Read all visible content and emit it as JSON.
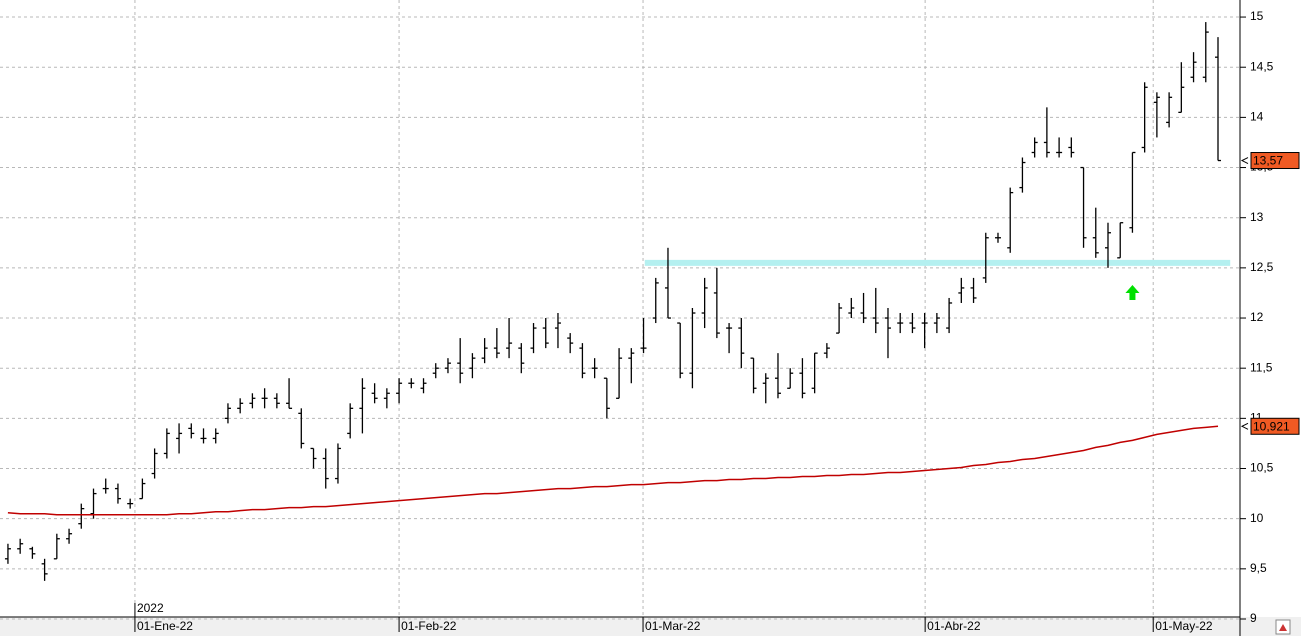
{
  "chart_data": {
    "type": "ohlc",
    "xlim": [
      -0.65,
      100.8
    ],
    "ylim": [
      9,
      15.17
    ],
    "yticks": [
      {
        "value": 9,
        "label": "9"
      },
      {
        "value": 9.5,
        "label": "9,5"
      },
      10,
      {
        "value": 10.5,
        "label": "10,5"
      },
      11,
      {
        "value": 11.5,
        "label": "11,5"
      },
      12,
      {
        "value": 12.5,
        "label": "12,5"
      },
      13,
      {
        "value": 13.5,
        "label": "13,5"
      },
      14,
      {
        "value": 14.5,
        "label": "14,5"
      },
      15
    ],
    "xticks": [
      {
        "value": 10.39,
        "label": "01-Ene-22"
      },
      {
        "value": 32.0,
        "label": "01-Feb-22"
      },
      {
        "value": 51.96,
        "label": "01-Mar-22"
      },
      {
        "value": 75.04,
        "label": "01-Abr-22"
      },
      {
        "value": 93.7,
        "label": "01-May-22"
      }
    ],
    "year_label": "2022",
    "grid": true,
    "series": [
      {
        "type": "ohlc",
        "color": "#000000",
        "last_label": {
          "value": 13.57,
          "label": "13,57"
        },
        "label_color": "#f05a23",
        "values": [
          [
            9.6,
            9.75,
            9.55,
            9.7
          ],
          [
            9.7,
            9.8,
            9.65,
            9.75
          ],
          [
            9.7,
            9.72,
            9.6,
            9.65
          ],
          [
            9.55,
            9.6,
            9.38,
            9.45
          ],
          [
            9.6,
            9.85,
            9.6,
            9.8
          ],
          [
            9.8,
            9.9,
            9.75,
            9.85
          ],
          [
            9.95,
            10.15,
            9.9,
            10.1
          ],
          [
            10.05,
            10.3,
            10.0,
            10.25
          ],
          [
            10.3,
            10.4,
            10.25,
            10.3
          ],
          [
            10.3,
            10.35,
            10.15,
            10.2
          ],
          [
            10.15,
            10.2,
            10.1,
            10.15
          ],
          [
            10.2,
            10.4,
            10.2,
            10.35
          ],
          [
            10.45,
            10.7,
            10.4,
            10.65
          ],
          [
            10.65,
            10.9,
            10.6,
            10.85
          ],
          [
            10.8,
            10.95,
            10.65,
            10.85
          ],
          [
            10.9,
            10.95,
            10.8,
            10.85
          ],
          [
            10.8,
            10.9,
            10.75,
            10.8
          ],
          [
            10.8,
            10.9,
            10.75,
            10.85
          ],
          [
            11.0,
            11.15,
            10.95,
            11.1
          ],
          [
            11.1,
            11.2,
            11.05,
            11.15
          ],
          [
            11.15,
            11.25,
            11.1,
            11.2
          ],
          [
            11.2,
            11.3,
            11.1,
            11.2
          ],
          [
            11.2,
            11.25,
            11.1,
            11.15
          ],
          [
            11.15,
            11.4,
            11.1,
            11.1
          ],
          [
            11.05,
            11.1,
            10.7,
            10.75
          ],
          [
            10.7,
            10.7,
            10.5,
            10.6
          ],
          [
            10.6,
            10.7,
            10.3,
            10.4
          ],
          [
            10.4,
            10.75,
            10.35,
            10.7
          ],
          [
            10.85,
            11.15,
            10.8,
            11.1
          ],
          [
            11.1,
            11.4,
            10.85,
            11.3
          ],
          [
            11.25,
            11.35,
            11.15,
            11.2
          ],
          [
            11.2,
            11.3,
            11.1,
            11.25
          ],
          [
            11.25,
            11.4,
            11.15,
            11.35
          ],
          [
            11.35,
            11.4,
            11.3,
            11.35
          ],
          [
            11.3,
            11.4,
            11.25,
            11.35
          ],
          [
            11.45,
            11.55,
            11.4,
            11.5
          ],
          [
            11.5,
            11.6,
            11.45,
            11.55
          ],
          [
            11.55,
            11.8,
            11.35,
            11.45
          ],
          [
            11.5,
            11.65,
            11.4,
            11.6
          ],
          [
            11.6,
            11.8,
            11.55,
            11.7
          ],
          [
            11.7,
            11.9,
            11.6,
            11.65
          ],
          [
            11.7,
            12.0,
            11.6,
            11.75
          ],
          [
            11.7,
            11.75,
            11.45,
            11.55
          ],
          [
            11.7,
            11.95,
            11.65,
            11.9
          ],
          [
            11.9,
            12.0,
            11.7,
            11.75
          ],
          [
            11.9,
            12.05,
            11.7,
            11.95
          ],
          [
            11.8,
            11.85,
            11.65,
            11.75
          ],
          [
            11.7,
            11.75,
            11.4,
            11.45
          ],
          [
            11.5,
            11.6,
            11.4,
            11.5
          ],
          [
            11.4,
            11.4,
            11.0,
            11.1
          ],
          [
            11.2,
            11.7,
            11.2,
            11.6
          ],
          [
            11.6,
            11.7,
            11.35,
            11.65
          ],
          [
            11.7,
            12.0,
            11.65,
            11.7
          ],
          [
            12.0,
            12.4,
            11.95,
            12.35
          ],
          [
            12.3,
            12.7,
            12.0,
            12.0
          ],
          [
            11.95,
            11.95,
            11.4,
            11.45
          ],
          [
            11.45,
            12.1,
            11.3,
            12.05
          ],
          [
            12.05,
            12.4,
            11.9,
            12.3
          ],
          [
            12.25,
            12.5,
            11.8,
            11.85
          ],
          [
            11.9,
            11.95,
            11.65,
            11.9
          ],
          [
            11.9,
            12.0,
            11.5,
            11.65
          ],
          [
            11.6,
            11.6,
            11.25,
            11.3
          ],
          [
            11.35,
            11.45,
            11.15,
            11.4
          ],
          [
            11.4,
            11.65,
            11.2,
            11.25
          ],
          [
            11.3,
            11.5,
            11.3,
            11.45
          ],
          [
            11.45,
            11.6,
            11.2,
            11.25
          ],
          [
            11.3,
            11.65,
            11.25,
            11.65
          ],
          [
            11.65,
            11.75,
            11.6,
            11.7
          ],
          [
            11.85,
            12.15,
            11.85,
            12.1
          ],
          [
            12.05,
            12.2,
            12.0,
            12.1
          ],
          [
            12.05,
            12.25,
            11.95,
            12.0
          ],
          [
            12.0,
            12.3,
            11.85,
            11.95
          ],
          [
            12.0,
            12.1,
            11.6,
            11.9
          ],
          [
            11.95,
            12.05,
            11.85,
            11.95
          ],
          [
            11.95,
            12.05,
            11.85,
            11.9
          ],
          [
            11.95,
            12.05,
            11.7,
            11.95
          ],
          [
            11.95,
            12.05,
            11.85,
            12.0
          ],
          [
            11.9,
            12.2,
            11.85,
            12.15
          ],
          [
            12.25,
            12.4,
            12.15,
            12.3
          ],
          [
            12.3,
            12.4,
            12.15,
            12.2
          ],
          [
            12.4,
            12.85,
            12.35,
            12.8
          ],
          [
            12.8,
            12.85,
            12.75,
            12.8
          ],
          [
            12.7,
            13.3,
            12.65,
            13.25
          ],
          [
            13.3,
            13.6,
            13.25,
            13.55
          ],
          [
            13.65,
            13.8,
            13.6,
            13.75
          ],
          [
            13.75,
            14.1,
            13.6,
            13.65
          ],
          [
            13.65,
            13.8,
            13.6,
            13.65
          ],
          [
            13.7,
            13.8,
            13.6,
            13.65
          ],
          [
            13.5,
            13.5,
            12.7,
            12.8
          ],
          [
            12.8,
            13.1,
            12.6,
            12.65
          ],
          [
            12.7,
            12.95,
            12.5,
            12.85
          ],
          [
            12.6,
            12.95,
            12.6,
            12.95
          ],
          [
            12.9,
            13.65,
            12.85,
            13.65
          ],
          [
            13.7,
            14.35,
            13.65,
            14.3
          ],
          [
            14.15,
            14.25,
            13.8,
            14.2
          ],
          [
            13.95,
            14.25,
            13.9,
            14.2
          ],
          [
            14.05,
            14.55,
            14.05,
            14.3
          ],
          [
            14.4,
            14.65,
            14.35,
            14.55
          ],
          [
            14.4,
            14.95,
            14.35,
            14.85
          ],
          [
            14.6,
            14.8,
            13.57,
            13.57
          ]
        ]
      },
      {
        "type": "line",
        "color": "#c00000",
        "last_label": {
          "value": 10.921,
          "label": "10,921"
        },
        "label_color": "#f05a23",
        "values": [
          10.06,
          10.05,
          10.05,
          10.05,
          10.04,
          10.04,
          10.04,
          10.04,
          10.04,
          10.04,
          10.04,
          10.04,
          10.04,
          10.04,
          10.05,
          10.05,
          10.06,
          10.07,
          10.07,
          10.08,
          10.09,
          10.09,
          10.1,
          10.11,
          10.11,
          10.12,
          10.12,
          10.13,
          10.14,
          10.15,
          10.16,
          10.17,
          10.18,
          10.19,
          10.2,
          10.21,
          10.22,
          10.23,
          10.24,
          10.25,
          10.25,
          10.26,
          10.27,
          10.28,
          10.29,
          10.3,
          10.3,
          10.31,
          10.32,
          10.32,
          10.33,
          10.34,
          10.34,
          10.35,
          10.36,
          10.36,
          10.37,
          10.38,
          10.38,
          10.39,
          10.39,
          10.4,
          10.4,
          10.41,
          10.41,
          10.42,
          10.42,
          10.43,
          10.43,
          10.44,
          10.44,
          10.45,
          10.46,
          10.46,
          10.47,
          10.48,
          10.49,
          10.5,
          10.51,
          10.53,
          10.54,
          10.56,
          10.57,
          10.59,
          10.6,
          10.62,
          10.64,
          10.66,
          10.68,
          10.71,
          10.73,
          10.76,
          10.78,
          10.81,
          10.84,
          10.86,
          10.88,
          10.9,
          10.91,
          10.921
        ]
      }
    ],
    "support_band": {
      "value": 12.55,
      "x": [
        52.1,
        100
      ],
      "color": "#b4f0f0"
    },
    "signal_arrow": {
      "x": 92,
      "value": 12.25,
      "color": "#00e000"
    }
  }
}
